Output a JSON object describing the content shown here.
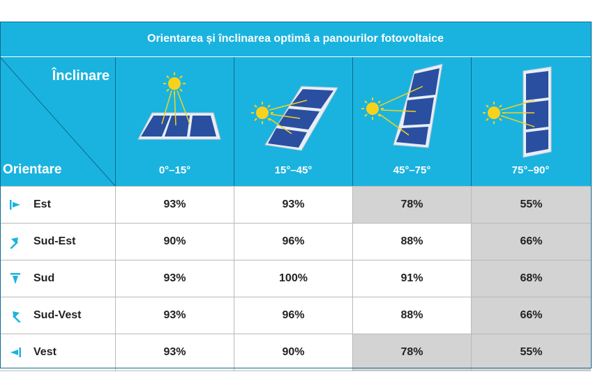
{
  "title": "Orientarea și înclinarea optimă a panourilor fotovoltaice",
  "corner": {
    "top_label": "Înclinare",
    "bottom_label": "Orientare"
  },
  "colors": {
    "header": "#1ab3df",
    "shaded": "#d3d3d3",
    "sun": "#f7d21c",
    "panel": "#2a4fa0"
  },
  "chart_data": {
    "type": "table",
    "title": "Orientarea și înclinarea optimă a panourilor fotovoltaice",
    "column_header": "Înclinare",
    "row_header": "Orientare",
    "columns": [
      "0°–15°",
      "15°–45°",
      "45°–75°",
      "75°–90°"
    ],
    "rows": [
      {
        "label": "Est",
        "icon": "arrow-east-icon",
        "values": [
          "93%",
          "93%",
          "78%",
          "55%"
        ],
        "shaded": [
          false,
          false,
          true,
          true
        ]
      },
      {
        "label": "Sud-Est",
        "icon": "arrow-southeast-icon",
        "values": [
          "90%",
          "96%",
          "88%",
          "66%"
        ],
        "shaded": [
          false,
          false,
          false,
          true
        ]
      },
      {
        "label": "Sud",
        "icon": "arrow-south-icon",
        "values": [
          "93%",
          "100%",
          "91%",
          "68%"
        ],
        "shaded": [
          false,
          false,
          false,
          true
        ]
      },
      {
        "label": "Sud-Vest",
        "icon": "arrow-southwest-icon",
        "values": [
          "93%",
          "96%",
          "88%",
          "66%"
        ],
        "shaded": [
          false,
          false,
          false,
          true
        ]
      },
      {
        "label": "Vest",
        "icon": "arrow-west-icon",
        "values": [
          "93%",
          "90%",
          "78%",
          "55%"
        ],
        "shaded": [
          false,
          false,
          true,
          true
        ]
      }
    ]
  }
}
